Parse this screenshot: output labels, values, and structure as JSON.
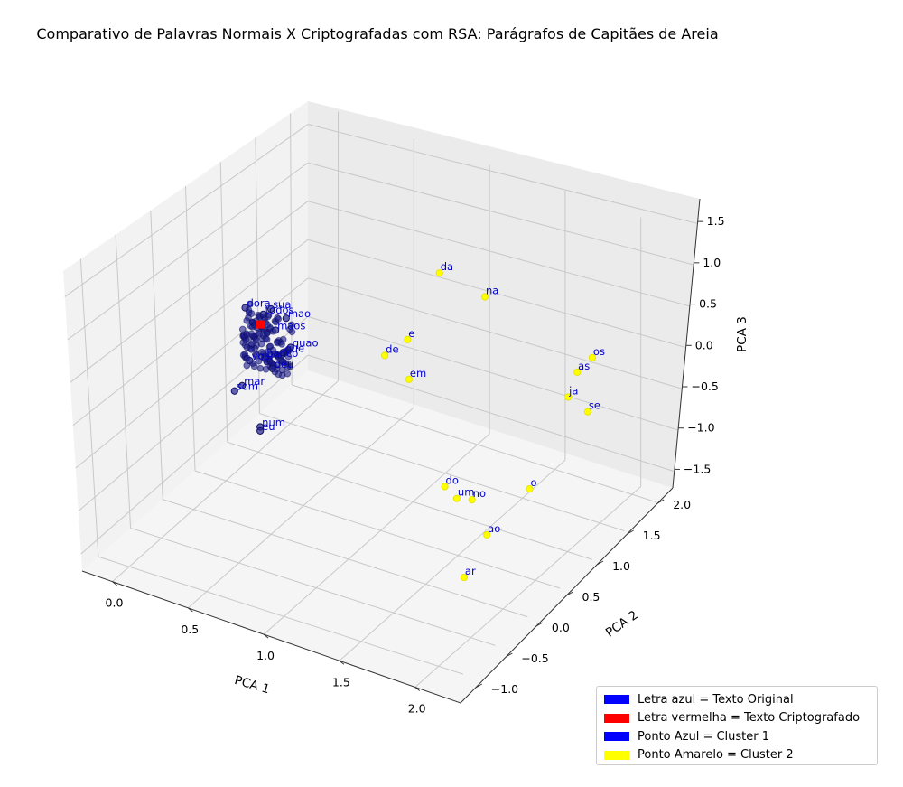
{
  "chart_data": {
    "type": "scatter3d",
    "title": "Comparativo de Palavras Normais X Criptografadas com RSA: Parágrafos de Capitães de Areia",
    "xlabel": "PCA 1",
    "ylabel": "PCA 2",
    "zlabel": "PCA 3",
    "xlim": [
      -0.4,
      2.1
    ],
    "ylim": [
      -1.3,
      2.4
    ],
    "zlim": [
      -1.6,
      1.8
    ],
    "x_ticks": [
      "0.0",
      "0.5",
      "1.0",
      "1.5",
      "2.0"
    ],
    "y_ticks": [
      "−1.0",
      "−0.5",
      "0.0",
      "0.5",
      "1.0",
      "1.5",
      "2.0"
    ],
    "z_ticks": [
      "−1.5",
      "−1.0",
      "−0.5",
      "0.0",
      "0.5",
      "1.0",
      "1.5"
    ],
    "grid": true,
    "legend_position": "lower-right",
    "legend": [
      {
        "label": "Letra azul = Texto Original",
        "color": "#0000ff"
      },
      {
        "label": "Letra vermelha = Texto Criptografado",
        "color": "#ff0000"
      },
      {
        "label": "Ponto Azul = Cluster 1",
        "color": "#0000ff"
      },
      {
        "label": "Ponto Amarelo = Cluster 2",
        "color": "#ffff00"
      }
    ],
    "cluster2_points": [
      {
        "label": "da",
        "x": 0.55,
        "y": 2.2,
        "z": 0.4
      },
      {
        "label": "na",
        "x": 0.85,
        "y": 2.2,
        "z": 0.3
      },
      {
        "label": "os",
        "x": 1.6,
        "y": 2.1,
        "z": 0.1
      },
      {
        "label": "as",
        "x": 1.5,
        "y": 2.1,
        "z": -0.15
      },
      {
        "label": "ja",
        "x": 1.4,
        "y": 2.2,
        "z": -0.6
      },
      {
        "label": "se",
        "x": 1.55,
        "y": 2.15,
        "z": -0.65
      },
      {
        "label": "e",
        "x": 0.5,
        "y": 1.8,
        "z": -0.2
      },
      {
        "label": "de",
        "x": 0.35,
        "y": 1.8,
        "z": -0.5
      },
      {
        "label": "em",
        "x": 0.55,
        "y": 1.7,
        "z": -0.6
      },
      {
        "label": "o",
        "x": 1.75,
        "y": 0.7,
        "z": -0.5
      },
      {
        "label": "do",
        "x": 1.25,
        "y": 0.55,
        "z": -0.7
      },
      {
        "label": "um",
        "x": 1.35,
        "y": 0.5,
        "z": -0.75
      },
      {
        "label": "no",
        "x": 1.45,
        "y": 0.5,
        "z": -0.7
      },
      {
        "label": "ao",
        "x": 1.75,
        "y": 0.0,
        "z": -0.6
      },
      {
        "label": "ar",
        "x": 1.7,
        "y": -0.25,
        "z": -1.0
      }
    ],
    "cluster1_points": [
      {
        "label": "sua",
        "x": -0.1,
        "y": 1.05,
        "z": 0.3
      },
      {
        "label": "mao",
        "x": 0.0,
        "y": 1.05,
        "z": 0.25
      },
      {
        "label": "dora",
        "x": -0.25,
        "y": 1.0,
        "z": 0.25
      },
      {
        "label": "todos",
        "x": -0.15,
        "y": 1.05,
        "z": 0.2
      },
      {
        "label": "maos",
        "x": -0.05,
        "y": 1.0,
        "z": 0.1
      },
      {
        "label": "quao",
        "x": 0.05,
        "y": 1.0,
        "z": -0.05
      },
      {
        "label": "que",
        "x": 0.0,
        "y": 1.0,
        "z": -0.15
      },
      {
        "label": "banco",
        "x": -0.1,
        "y": 0.95,
        "z": -0.25
      },
      {
        "label": "deu",
        "x": -0.05,
        "y": 0.95,
        "z": -0.35
      },
      {
        "label": "voar",
        "x": -0.2,
        "y": 0.95,
        "z": -0.35
      },
      {
        "label": "mar",
        "x": -0.25,
        "y": 0.95,
        "z": -0.7
      },
      {
        "label": "som",
        "x": -0.3,
        "y": 0.95,
        "z": -0.8
      },
      {
        "label": "num",
        "x": -0.05,
        "y": 0.75,
        "z": -0.95
      },
      {
        "label": "eu",
        "x": -0.05,
        "y": 0.75,
        "z": -1.0
      }
    ],
    "encrypted_points": [
      {
        "label": "▮",
        "x": -0.15,
        "y": 1.0,
        "z": 0.1
      }
    ]
  }
}
